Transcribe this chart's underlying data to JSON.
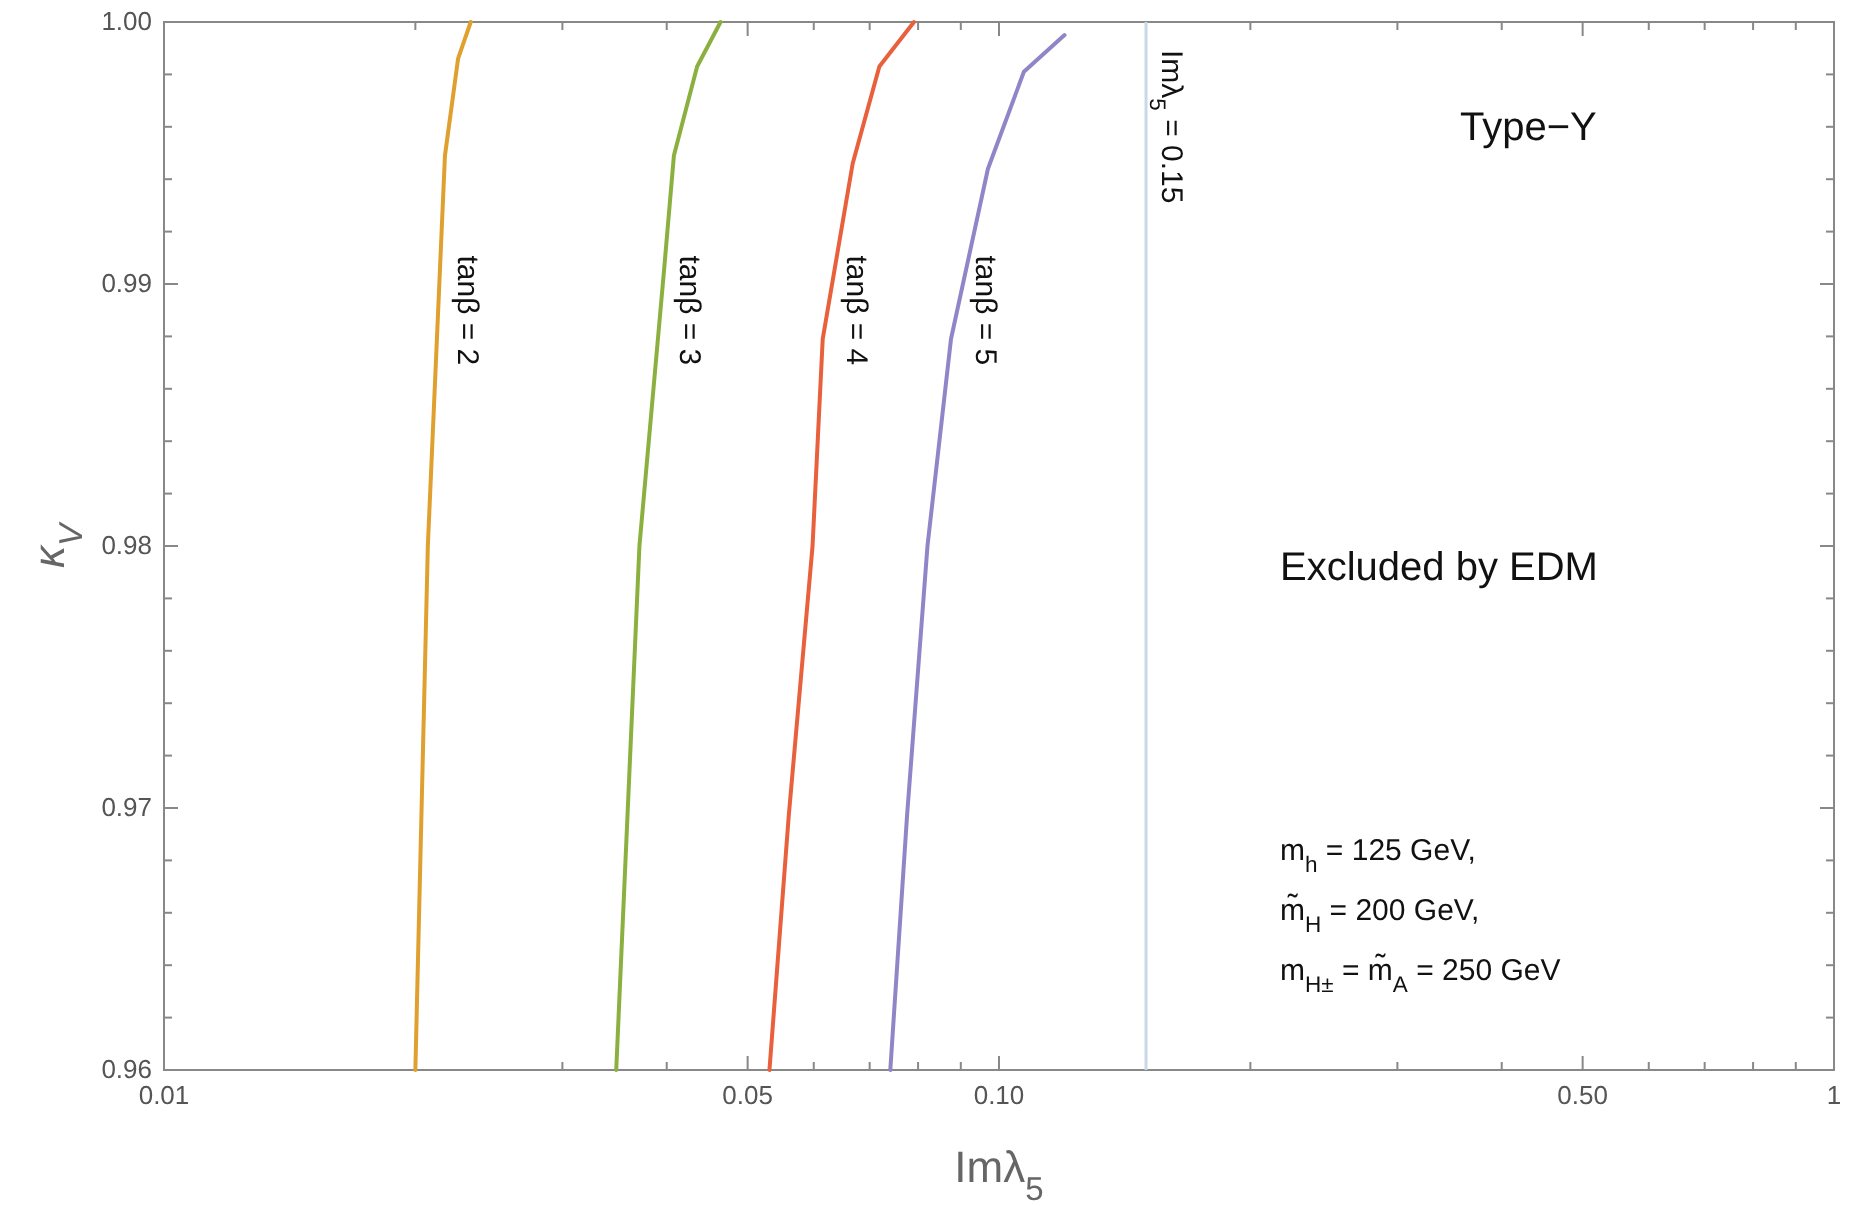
{
  "chart_data": {
    "type": "line",
    "xlabel": "Imλ$_{5}$",
    "ylabel": "κ$_{V}$",
    "log": "x",
    "xlim": [
      0.01,
      1
    ],
    "ylim": [
      0.96,
      1.0
    ],
    "xticks": [
      {
        "value": 0.01,
        "label": "0.01"
      },
      {
        "value": 0.02,
        "label": null
      },
      {
        "value": 0.03,
        "label": null
      },
      {
        "value": 0.04,
        "label": null
      },
      {
        "value": 0.05,
        "label": "0.05"
      },
      {
        "value": 0.06,
        "label": null
      },
      {
        "value": 0.07,
        "label": null
      },
      {
        "value": 0.08,
        "label": null
      },
      {
        "value": 0.09,
        "label": null
      },
      {
        "value": 0.1,
        "label": "0.10"
      },
      {
        "value": 0.2,
        "label": null
      },
      {
        "value": 0.3,
        "label": null
      },
      {
        "value": 0.4,
        "label": null
      },
      {
        "value": 0.5,
        "label": "0.50"
      },
      {
        "value": 0.6,
        "label": null
      },
      {
        "value": 0.7,
        "label": null
      },
      {
        "value": 0.8,
        "label": null
      },
      {
        "value": 0.9,
        "label": null
      },
      {
        "value": 1,
        "label": "1"
      }
    ],
    "yticks": [
      {
        "value": 0.96,
        "label": "0.96"
      },
      {
        "value": 0.962,
        "label": null
      },
      {
        "value": 0.964,
        "label": null
      },
      {
        "value": 0.966,
        "label": null
      },
      {
        "value": 0.968,
        "label": null
      },
      {
        "value": 0.97,
        "label": "0.97"
      },
      {
        "value": 0.972,
        "label": null
      },
      {
        "value": 0.974,
        "label": null
      },
      {
        "value": 0.976,
        "label": null
      },
      {
        "value": 0.978,
        "label": null
      },
      {
        "value": 0.98,
        "label": "0.98"
      },
      {
        "value": 0.982,
        "label": null
      },
      {
        "value": 0.984,
        "label": null
      },
      {
        "value": 0.986,
        "label": null
      },
      {
        "value": 0.988,
        "label": null
      },
      {
        "value": 0.99,
        "label": "0.99"
      },
      {
        "value": 0.992,
        "label": null
      },
      {
        "value": 0.994,
        "label": null
      },
      {
        "value": 0.996,
        "label": null
      },
      {
        "value": 0.998,
        "label": null
      },
      {
        "value": 1.0,
        "label": "1.00"
      }
    ],
    "grid": false,
    "legend": false,
    "marker": "none",
    "line_style": "solid",
    "series": [
      {
        "name": "tanβ = 2",
        "color": "#e0a030",
        "x": [
          0.02,
          0.0207,
          0.0217,
          0.0225,
          0.0233
        ],
        "values": [
          0.96,
          0.98,
          0.9949,
          0.9986,
          1.0
        ]
      },
      {
        "name": "tanβ = 3",
        "color": "#8cb040",
        "x": [
          0.0348,
          0.0371,
          0.0397,
          0.0408,
          0.0435,
          0.0464
        ],
        "values": [
          0.96,
          0.98,
          0.9905,
          0.9949,
          0.9983,
          1.0
        ]
      },
      {
        "name": "tanβ = 4",
        "color": "#e8603c",
        "x": [
          0.0531,
          0.056,
          0.0598,
          0.0615,
          0.0668,
          0.0719,
          0.0791
        ],
        "values": [
          0.96,
          0.9697,
          0.98,
          0.9879,
          0.9946,
          0.9983,
          1.0
        ]
      },
      {
        "name": "tanβ = 5",
        "color": "#8f86c8",
        "x": [
          0.0741,
          0.0776,
          0.0821,
          0.0876,
          0.097,
          0.1071,
          0.1198
        ],
        "values": [
          0.96,
          0.9697,
          0.98,
          0.9879,
          0.9944,
          0.9981,
          0.9995
        ]
      }
    ],
    "ref_lines": [
      {
        "axis": "x",
        "value": 0.15,
        "label": "Imλ$_{5}$ = 0.15",
        "color": "#c8d8e8"
      }
    ],
    "annotations": [
      "Type−Y",
      "Excluded by EDM",
      "m$_{h}$ = 125 GeV,",
      "m̃$_{H}$ = 200 GeV,",
      "m$_{H±}$ = m̃$_{A}$ = 250 GeV"
    ]
  }
}
